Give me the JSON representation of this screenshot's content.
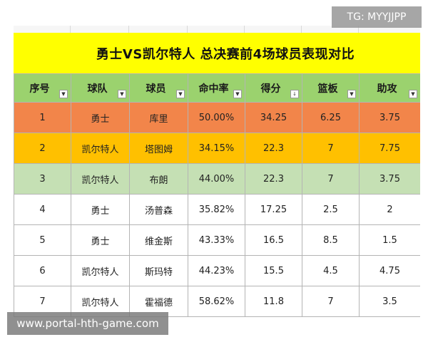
{
  "sheet": {
    "title": "勇士VS凯尔特人 总决赛前4场球员表现对比",
    "filter_icon": "dropdown-arrow-icon",
    "sort_icon": "sort-descending-icon",
    "columns": [
      "序号",
      "球队",
      "球员",
      "命中率",
      "得分",
      "篮板",
      "助攻"
    ],
    "sorted_column": "得分",
    "rows": [
      {
        "no": "1",
        "team": "勇士",
        "player": "库里",
        "fg": "50.00%",
        "pts": "34.25",
        "reb": "6.25",
        "ast": "3.75",
        "fill": "#f2854a"
      },
      {
        "no": "2",
        "team": "凯尔特人",
        "player": "塔图姆",
        "fg": "34.15%",
        "pts": "22.3",
        "reb": "7",
        "ast": "7.75",
        "fill": "#ffc000"
      },
      {
        "no": "3",
        "team": "凯尔特人",
        "player": "布朗",
        "fg": "44.00%",
        "pts": "22.3",
        "reb": "7",
        "ast": "3.75",
        "fill": "#c5e0b4"
      },
      {
        "no": "4",
        "team": "勇士",
        "player": "汤普森",
        "fg": "35.82%",
        "pts": "17.25",
        "reb": "2.5",
        "ast": "2",
        "fill": "#ffffff"
      },
      {
        "no": "5",
        "team": "勇士",
        "player": "维金斯",
        "fg": "43.33%",
        "pts": "16.5",
        "reb": "8.5",
        "ast": "1.5",
        "fill": "#ffffff"
      },
      {
        "no": "6",
        "team": "凯尔特人",
        "player": "斯玛特",
        "fg": "44.23%",
        "pts": "15.5",
        "reb": "4.5",
        "ast": "4.75",
        "fill": "#ffffff"
      },
      {
        "no": "7",
        "team": "凯尔特人",
        "player": "霍福德",
        "fg": "58.62%",
        "pts": "11.8",
        "reb": "7",
        "ast": "3.5",
        "fill": "#ffffff"
      }
    ]
  },
  "colors": {
    "title_background": "#ffff00",
    "header_background": "#9bd26e"
  },
  "watermarks": {
    "top_right": "TG: MYYJJPP",
    "bottom_left": "www.portal-hth-game.com"
  }
}
